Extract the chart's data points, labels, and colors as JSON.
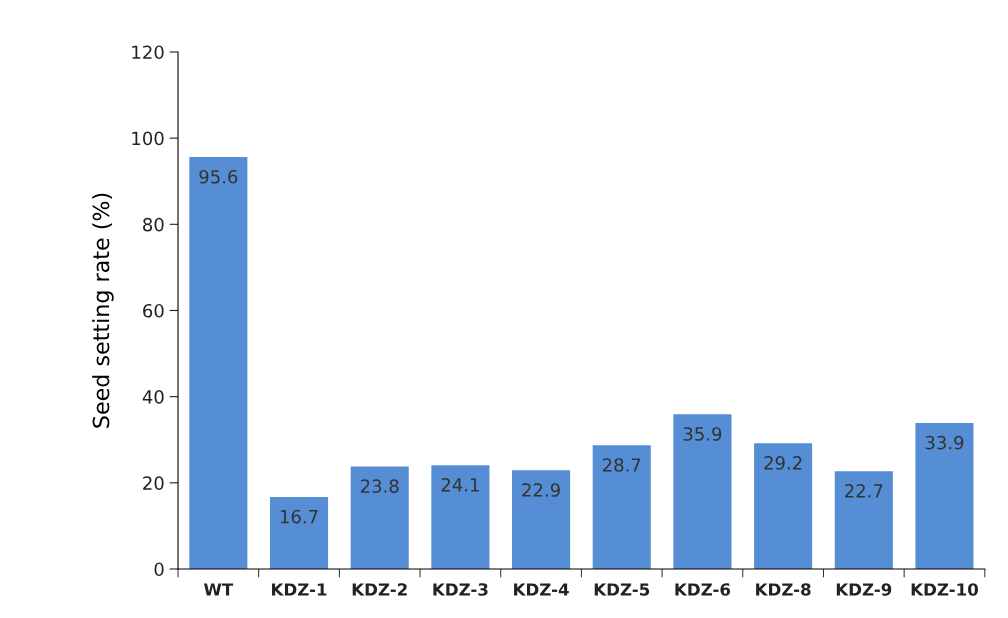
{
  "chart_data": {
    "type": "bar",
    "ylabel": "Seed setting rate (%)",
    "categories": [
      "WT",
      "KDZ-1",
      "KDZ-2",
      "KDZ-3",
      "KDZ-4",
      "KDZ-5",
      "KDZ-6",
      "KDZ-8",
      "KDZ-9",
      "KDZ-10"
    ],
    "values": [
      95.6,
      16.7,
      23.8,
      24.1,
      22.9,
      28.7,
      35.9,
      29.2,
      22.7,
      33.9
    ],
    "color": "#558ed5",
    "ylim": [
      0,
      120
    ],
    "yticks": [
      0,
      20,
      40,
      60,
      80,
      100,
      120
    ],
    "data_labels": true,
    "grid": false,
    "legend": false
  }
}
